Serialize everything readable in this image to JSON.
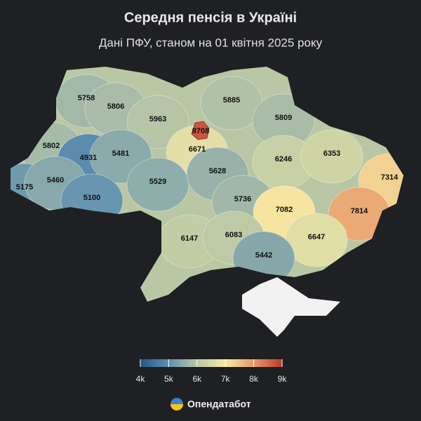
{
  "header": {
    "title": "Середня пенсія в Україні",
    "subtitle": "Дані ПФУ, станом на 01 квітня 2025 року"
  },
  "map": {
    "values": [
      5758,
      5806,
      5963,
      5885,
      5809,
      5802,
      4931,
      5481,
      8708,
      6671,
      6246,
      6353,
      7314,
      5175,
      5460,
      5100,
      5529,
      5628,
      5736,
      7082,
      7814,
      6147,
      6083,
      6647,
      5442
    ]
  },
  "legend": {
    "ticks": [
      {
        "value": 4000,
        "label": "4k"
      },
      {
        "value": 5000,
        "label": "5k"
      },
      {
        "value": 6000,
        "label": "6k"
      },
      {
        "value": 7000,
        "label": "7k"
      },
      {
        "value": 8000,
        "label": "8k"
      },
      {
        "value": 9000,
        "label": "9k"
      }
    ],
    "colors": [
      "#24568a",
      "#5f8fb0",
      "#b9c7a5",
      "#f7eba6",
      "#e79a6a",
      "#c0392b"
    ]
  },
  "brand": "Опендатабот"
}
